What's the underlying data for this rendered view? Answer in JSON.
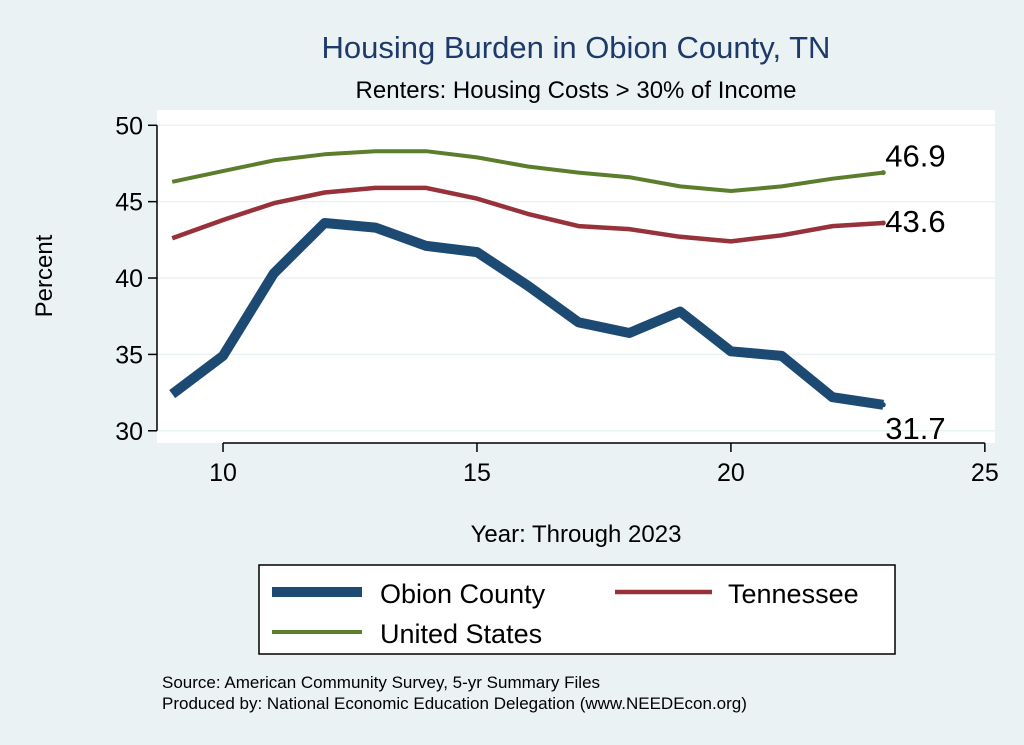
{
  "chart_data": {
    "type": "line",
    "title": "Housing Burden in Obion County, TN",
    "subtitle": "Renters: Housing Costs > 30% of Income",
    "xlabel": "Year: Through 2023",
    "ylabel": "Percent",
    "xlim": [
      8.7,
      25.2
    ],
    "ylim": [
      29.2,
      51
    ],
    "xticks": [
      10,
      15,
      20,
      25
    ],
    "yticks": [
      30,
      35,
      40,
      45,
      50
    ],
    "grid": true,
    "x": [
      9,
      10,
      11,
      12,
      13,
      14,
      15,
      16,
      17,
      18,
      19,
      20,
      21,
      22,
      23
    ],
    "series": [
      {
        "name": "United States",
        "color": "#5b7d2c",
        "width": 4,
        "end_label": "46.9",
        "values": [
          46.3,
          47.0,
          47.7,
          48.1,
          48.3,
          48.3,
          47.9,
          47.3,
          46.9,
          46.6,
          46.0,
          45.7,
          46.0,
          46.5,
          46.9
        ]
      },
      {
        "name": "Tennessee",
        "color": "#98323a",
        "width": 4.5,
        "end_label": "43.6",
        "values": [
          42.6,
          43.8,
          44.9,
          45.6,
          45.9,
          45.9,
          45.2,
          44.2,
          43.4,
          43.2,
          42.7,
          42.4,
          42.8,
          43.4,
          43.6
        ]
      },
      {
        "name": "Obion County",
        "color": "#1c4a72",
        "width": 10,
        "end_label": "31.7",
        "values": [
          32.4,
          34.9,
          40.3,
          43.6,
          43.3,
          42.1,
          41.7,
          39.5,
          37.1,
          36.4,
          37.8,
          35.2,
          34.9,
          32.2,
          31.7
        ]
      }
    ],
    "legend": {
      "position": "bottom",
      "items": [
        {
          "label": "Obion County",
          "color": "#1c4a72"
        },
        {
          "label": "Tennessee",
          "color": "#98323a"
        },
        {
          "label": "United States",
          "color": "#5b7d2c"
        }
      ]
    }
  },
  "notes": {
    "source": "Source: American Community Survey, 5-yr Summary Files",
    "produced_by": "Produced by: National Economic Education Delegation (www.NEEDEcon.org)"
  }
}
